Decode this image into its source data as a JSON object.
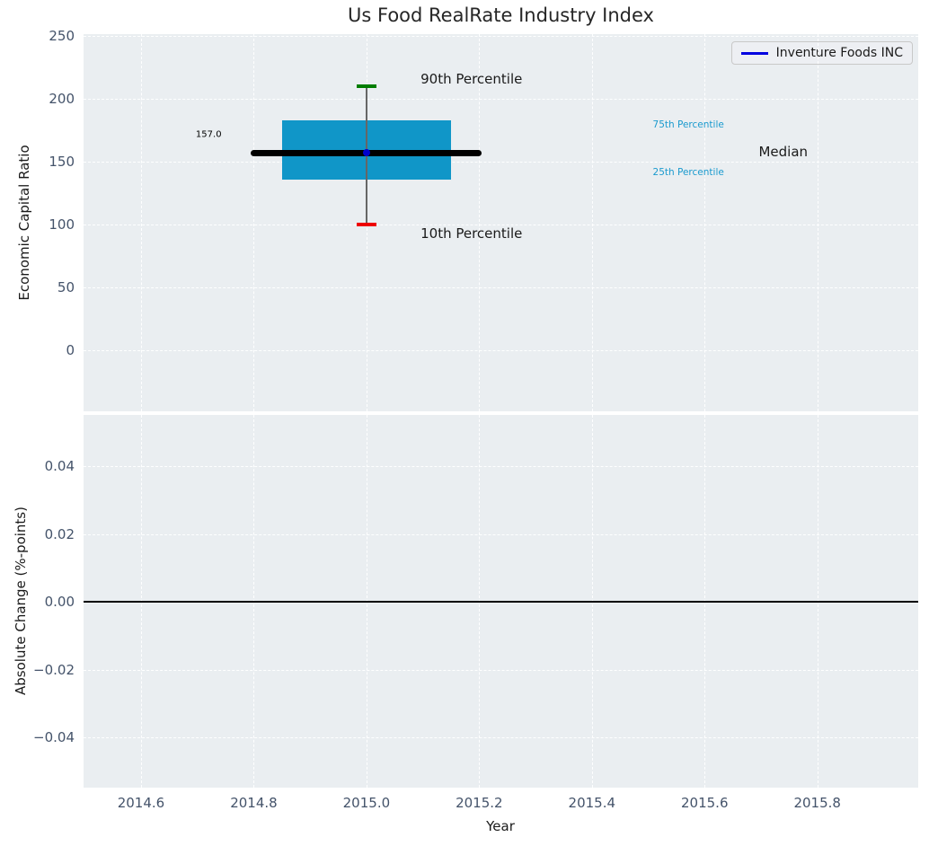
{
  "title": "Us Food RealRate Industry Index",
  "legend": {
    "label": "Inventure Foods INC",
    "line_color": "#0000e0",
    "position": "upper right"
  },
  "colors": {
    "box_fill": "#1096c8",
    "median_line": "#000000",
    "whisker": "#666666",
    "cap_90th": "#007d00",
    "cap_10th": "#ee0000",
    "company_marker": "#0000cd",
    "axes_background": "#eaeef1",
    "gridline": "#ffffff",
    "tick_text": "#44536a",
    "percentile_text": "#1a9ace",
    "zero_line": "#000000"
  },
  "x_axis": {
    "label": "Year",
    "ticks": [
      2014.6,
      2014.8,
      2015.0,
      2015.2,
      2015.4,
      2015.6,
      2015.8
    ],
    "tick_labels": [
      "2014.6",
      "2014.8",
      "2015.0",
      "2015.2",
      "2015.4",
      "2015.6",
      "2015.8"
    ],
    "xlim": [
      2014.498,
      2015.979
    ]
  },
  "chart_data": [
    {
      "type": "boxplot",
      "title": "Us Food RealRate Industry Index",
      "ylabel": "Economic Capital Ratio",
      "series_label": "Inventure Foods INC",
      "x": 2015.0,
      "values": {
        "p10": 100,
        "p25": 136,
        "median": 157.0,
        "p75": 183,
        "p90": 210,
        "company_value": 157.0
      },
      "median_data_label": "157.0",
      "box_x_range": [
        2014.85,
        2015.15
      ],
      "median_x_range": [
        2014.795,
        2015.205
      ],
      "yticks": [
        0,
        50,
        100,
        150,
        200,
        250
      ],
      "ytick_labels": [
        "0",
        "50",
        "100",
        "150",
        "200",
        "250"
      ],
      "ylim": [
        -48.6,
        251.4
      ],
      "grid": true,
      "legend_position": "upper right",
      "annotations": [
        {
          "text": "90th Percentile",
          "x": 2015.096,
          "y": 215.7,
          "style": "large",
          "anchor": "left"
        },
        {
          "text": "10th Percentile",
          "x": 2015.096,
          "y": 92.9,
          "style": "large",
          "anchor": "left"
        },
        {
          "text": "157.0",
          "x": 2014.72,
          "y": 171.4,
          "style": "small",
          "anchor": "center"
        },
        {
          "text": "75th Percentile",
          "x": 2015.508,
          "y": 179.3,
          "style": "percentile",
          "anchor": "left"
        },
        {
          "text": "Median",
          "x": 2015.696,
          "y": 157.9,
          "style": "large",
          "anchor": "left"
        },
        {
          "text": "25th Percentile",
          "x": 2015.508,
          "y": 141.4,
          "style": "percentile",
          "anchor": "left"
        }
      ]
    },
    {
      "type": "line",
      "ylabel": "Absolute Change (%-points)",
      "xlabel": "Year",
      "series": [],
      "zero_line_y": 0.0,
      "yticks": [
        -0.04,
        -0.02,
        0.0,
        0.02,
        0.04
      ],
      "ytick_labels": [
        "−0.04",
        "−0.02",
        "0.00",
        "0.02",
        "0.04"
      ],
      "ylim": [
        -0.0548,
        0.0551
      ],
      "grid": true
    }
  ]
}
